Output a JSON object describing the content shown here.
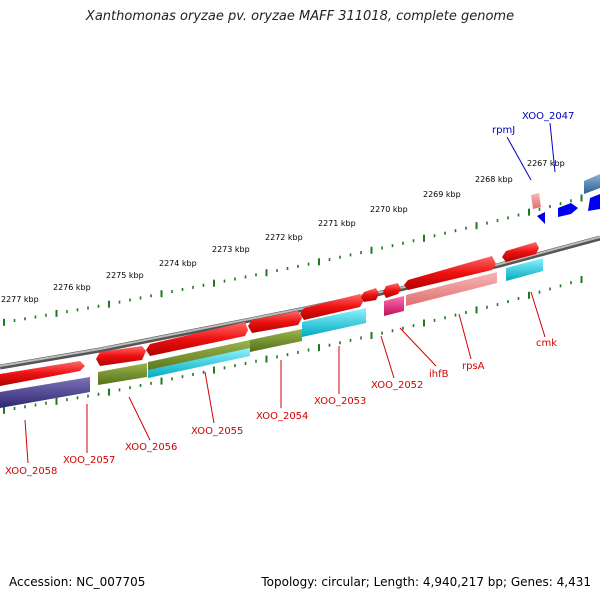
{
  "title": "Xanthomonas oryzae pv. oryzae MAFF 311018, complete genome",
  "footer": {
    "accession": "Accession: NC_007705",
    "topology": "Topology: circular; Length: 4,940,217 bp; Genes: 4,431"
  },
  "colors": {
    "backbone": "#8a8a8a",
    "forward_label": "#d40000",
    "reverse_label": "#0000c0",
    "tick": "#1f7a1f",
    "gene_red": "#ee1111",
    "gene_olive": "#6b8e23",
    "gene_cyan": "#00c8dd",
    "gene_navy": "#4a3f8c",
    "gene_pink": "#e8337a",
    "gene_salmon": "#f08a8a",
    "gene_blue": "#0000ee",
    "gene_steel": "#4a7fb0"
  },
  "kbp_labels": [
    "2267 kbp",
    "2268 kbp",
    "2269 kbp",
    "2270 kbp",
    "2271 kbp",
    "2272 kbp",
    "2273 kbp",
    "2274 kbp",
    "2275 kbp",
    "2276 kbp",
    "2277 kbp"
  ],
  "gene_labels_below": [
    "cmk",
    "rpsA",
    "ihfB",
    "XOO_2052",
    "XOO_2053",
    "XOO_2054",
    "XOO_2055",
    "XOO_2056",
    "XOO_2057",
    "XOO_2058"
  ],
  "gene_labels_above": [
    "rpmJ",
    "XOO_2047"
  ]
}
